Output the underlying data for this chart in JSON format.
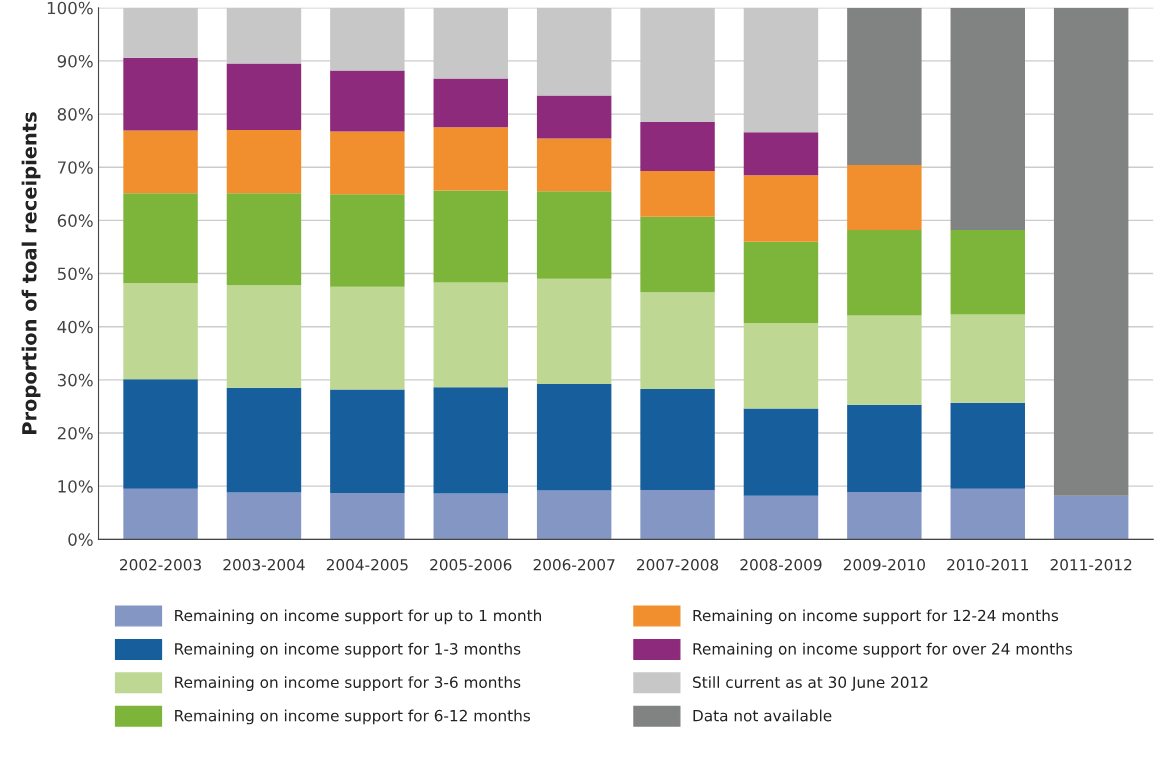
{
  "chart_data": {
    "type": "bar",
    "stacked": true,
    "ylabel": "Proportion of toal receipients",
    "categories": [
      "2002-2003",
      "2003-2004",
      "2004-2005",
      "2005-2006",
      "2006-2007",
      "2007-2008",
      "2008-2009",
      "2009-2010",
      "2010-2011",
      "2011-2012"
    ],
    "series": [
      {
        "name": "Remaining on income support for up to 1 month",
        "color": "#8497c4",
        "values": [
          9.5,
          8.8,
          8.7,
          8.6,
          9.2,
          9.3,
          8.2,
          8.9,
          9.5,
          8.2
        ]
      },
      {
        "name": "Remaining on income support for 1-3 months",
        "color": "#175e9c",
        "values": [
          20.6,
          19.7,
          19.5,
          20.0,
          20.0,
          19.0,
          16.4,
          16.4,
          16.2,
          null
        ]
      },
      {
        "name": "Remaining on income support for 3-6 months",
        "color": "#bed894",
        "values": [
          18.1,
          19.3,
          19.3,
          19.7,
          19.8,
          18.2,
          16.1,
          16.8,
          16.6,
          null
        ]
      },
      {
        "name": "Remaining on income support for 6-12 months",
        "color": "#7db53b",
        "values": [
          16.9,
          17.3,
          17.4,
          17.3,
          16.5,
          14.2,
          15.3,
          16.1,
          15.9,
          null
        ]
      },
      {
        "name": "Remaining on income support for 12-24 months",
        "color": "#f18f2e",
        "values": [
          11.8,
          11.9,
          11.8,
          11.9,
          9.9,
          8.6,
          12.5,
          12.2,
          null,
          null
        ]
      },
      {
        "name": "Remaining on income support for over 24 months",
        "color": "#8e2a7b",
        "values": [
          13.7,
          12.5,
          11.5,
          9.2,
          8.1,
          9.2,
          8.1,
          null,
          null,
          null
        ]
      },
      {
        "name": "Still current as at 30 June 2012",
        "color": "#c7c7c8",
        "values": [
          9.4,
          10.5,
          11.8,
          13.3,
          16.5,
          21.5,
          23.4,
          null,
          null,
          null
        ]
      },
      {
        "name": "Data not available",
        "color": "#818282",
        "values": [
          null,
          null,
          null,
          null,
          null,
          null,
          null,
          29.6,
          41.8,
          91.8
        ]
      }
    ],
    "ylim": [
      0,
      100
    ],
    "yticks": [
      {
        "value": 0,
        "label": "0%"
      },
      {
        "value": 10,
        "label": "10%"
      },
      {
        "value": 20,
        "label": "20%"
      },
      {
        "value": 30,
        "label": "30%"
      },
      {
        "value": 40,
        "label": "40%"
      },
      {
        "value": 50,
        "label": "50%"
      },
      {
        "value": 60,
        "label": "60%"
      },
      {
        "value": 70,
        "label": "70%"
      },
      {
        "value": 80,
        "label": "80%"
      },
      {
        "value": 90,
        "label": "90%"
      },
      {
        "value": 100,
        "label": "100%"
      }
    ],
    "grid": "y",
    "legend": "bottom"
  }
}
